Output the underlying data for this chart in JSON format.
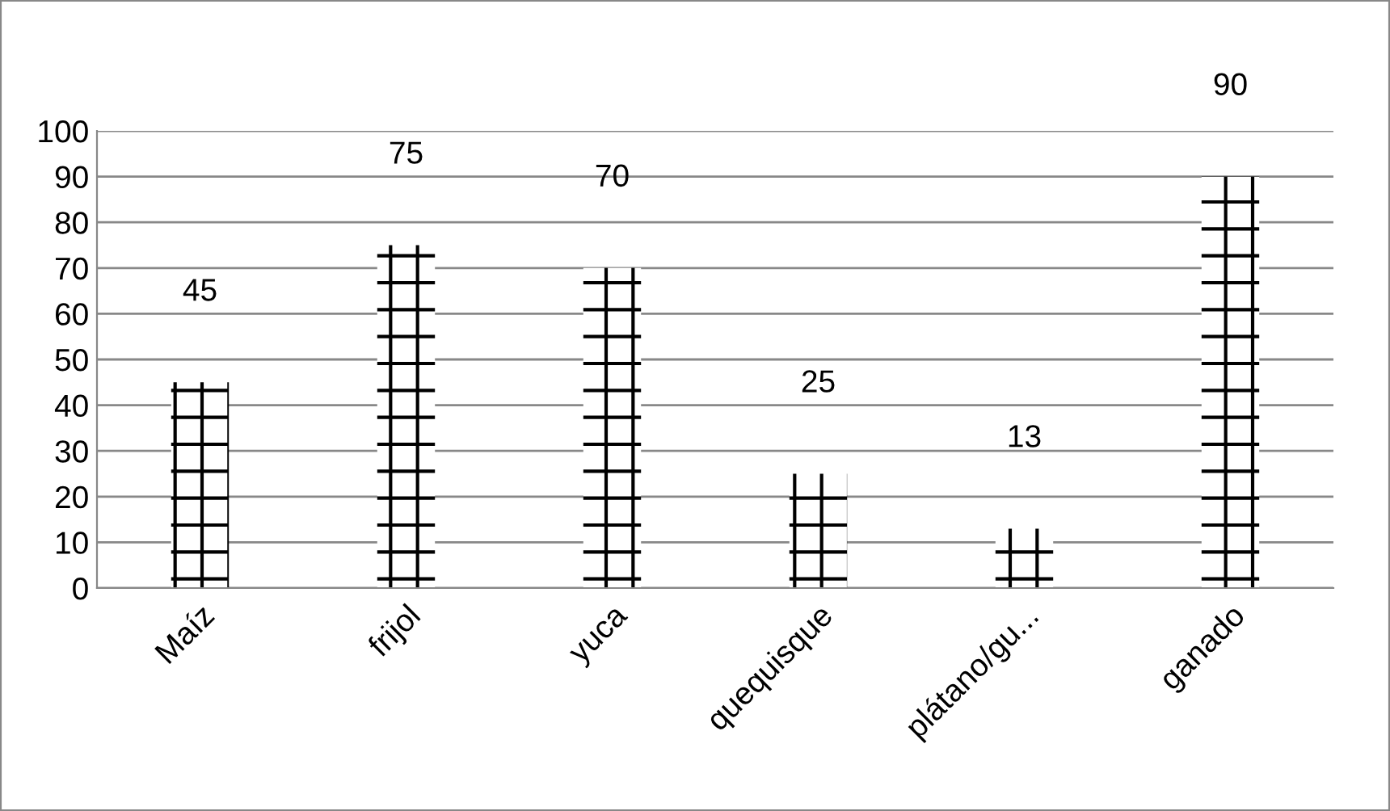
{
  "chart_data": {
    "type": "bar",
    "categories": [
      "Maíz",
      "frijol",
      "yuca",
      "quequisque",
      "plátano/gu...",
      "ganado"
    ],
    "values": [
      45,
      75,
      70,
      25,
      13,
      90
    ],
    "color": "#ffffff",
    "ylim": [
      0,
      100
    ],
    "yticks": [
      0,
      10,
      20,
      30,
      40,
      50,
      60,
      70,
      80,
      90,
      100
    ],
    "grid": "y",
    "data_labels": true
  }
}
